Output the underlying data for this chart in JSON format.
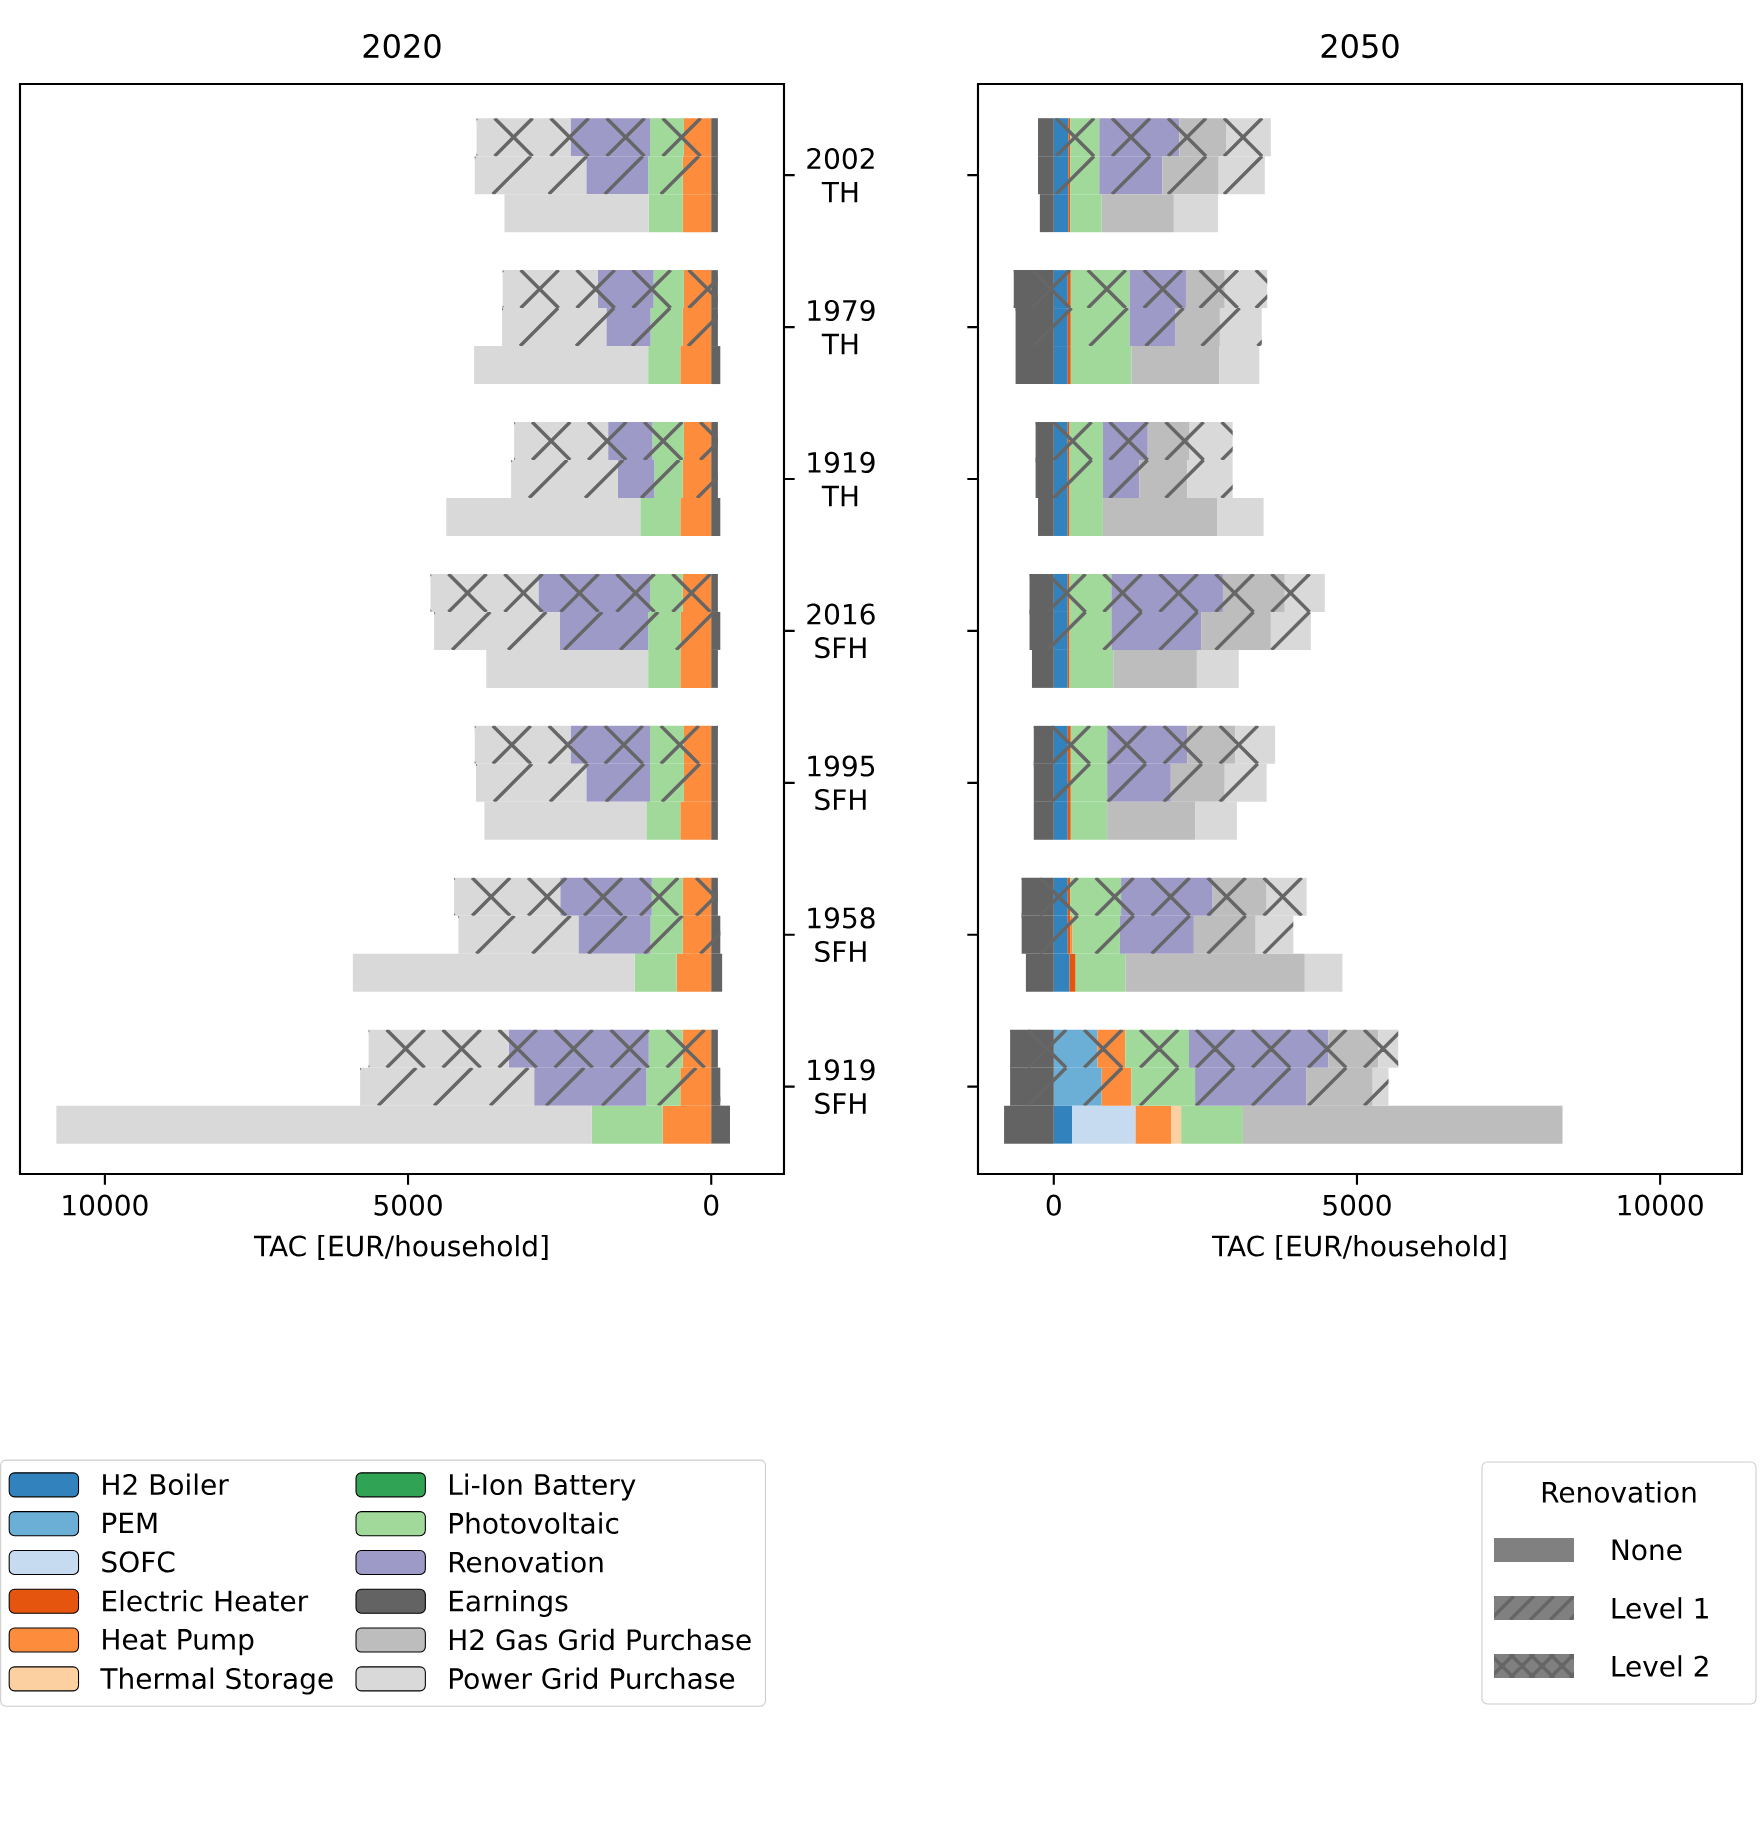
{
  "chart_data": [
    {
      "type": "bar",
      "orientation": "horizontal",
      "stacked": true,
      "title": "2020",
      "xlabel": "TAC [EUR/household]",
      "xlim": [
        11400,
        -1200
      ],
      "xticks": [
        10000,
        5000,
        0
      ],
      "legend": "bottom",
      "categories": [
        null,
        "2002 TH",
        null,
        null,
        "1979 TH",
        null,
        null,
        "1919 TH",
        null,
        null,
        "2016 SFH",
        null,
        null,
        "1995 SFH",
        null,
        null,
        "1958 SFH",
        null,
        null,
        "1919 SFH",
        null
      ],
      "series": [
        {
          "name": "H2 Boiler",
          "color": "#3182bd",
          "values": [
            null,
            null,
            null,
            null,
            null,
            null,
            null,
            null,
            null,
            null,
            null,
            null,
            null,
            null,
            null,
            null,
            null,
            null,
            null,
            null,
            null
          ]
        },
        {
          "name": "PEM",
          "color": "#6baed6",
          "values": [
            null,
            null,
            null,
            null,
            null,
            null,
            null,
            null,
            null,
            null,
            null,
            null,
            null,
            null,
            null,
            null,
            null,
            null,
            null,
            null,
            null
          ]
        },
        {
          "name": "SOFC",
          "color": "#c6dbef",
          "values": [
            null,
            null,
            null,
            null,
            null,
            null,
            null,
            null,
            null,
            null,
            null,
            null,
            null,
            null,
            null,
            null,
            null,
            null,
            null,
            null,
            null
          ]
        },
        {
          "name": "Electric Heater",
          "color": "#e6550d",
          "values": [
            null,
            null,
            null,
            null,
            null,
            null,
            null,
            null,
            null,
            null,
            null,
            null,
            null,
            null,
            null,
            null,
            null,
            null,
            null,
            null,
            null
          ]
        },
        {
          "name": "Heat Pump",
          "color": "#fd8d3c",
          "values": [
            450,
            470,
            470,
            450,
            470,
            510,
            450,
            470,
            510,
            470,
            500,
            510,
            450,
            450,
            510,
            470,
            470,
            570,
            470,
            510,
            800
          ]
        },
        {
          "name": "Thermal Storage",
          "color": "#fdd0a2",
          "values": [
            null,
            null,
            null,
            null,
            null,
            null,
            null,
            null,
            null,
            null,
            null,
            null,
            null,
            null,
            null,
            null,
            null,
            null,
            null,
            null,
            null
          ]
        },
        {
          "name": "Li-Ion Battery",
          "color": "#31a354",
          "values": [
            null,
            null,
            null,
            null,
            null,
            null,
            null,
            null,
            null,
            null,
            null,
            null,
            null,
            null,
            null,
            null,
            null,
            null,
            null,
            null,
            null
          ]
        },
        {
          "name": "Photovoltaic",
          "color": "#a1d99b",
          "values": [
            560,
            570,
            560,
            500,
            530,
            530,
            520,
            470,
            660,
            540,
            540,
            530,
            560,
            560,
            560,
            510,
            530,
            690,
            560,
            560,
            1170
          ]
        },
        {
          "name": "Renovation",
          "color": "#9e9ac8",
          "values": [
            1310,
            1020,
            null,
            920,
            730,
            null,
            730,
            600,
            null,
            1840,
            1460,
            null,
            1310,
            1050,
            null,
            1510,
            1190,
            null,
            2310,
            1850,
            null
          ]
        },
        {
          "name": "Earnings",
          "color": "#636363",
          "values": [
            -110,
            -110,
            -110,
            -110,
            -110,
            -150,
            -110,
            -110,
            -150,
            -110,
            -150,
            -110,
            -110,
            -110,
            -110,
            -110,
            -150,
            -180,
            -110,
            -150,
            -310
          ]
        },
        {
          "name": "H2 Gas Grid Purchase",
          "color": "#bdbdbd",
          "values": [
            null,
            null,
            null,
            null,
            null,
            null,
            null,
            null,
            null,
            null,
            null,
            null,
            null,
            null,
            null,
            null,
            null,
            null,
            null,
            null,
            null
          ]
        },
        {
          "name": "Power Grid Purchase",
          "color": "#d9d9d9",
          "values": [
            1550,
            1840,
            2380,
            1570,
            1720,
            2870,
            1550,
            1760,
            3200,
            1780,
            2070,
            2670,
            1580,
            1820,
            2670,
            1750,
            1980,
            4650,
            2310,
            2870,
            8830
          ]
        }
      ]
    },
    {
      "type": "bar",
      "orientation": "horizontal",
      "stacked": true,
      "title": "2050",
      "xlabel": "TAC [EUR/household]",
      "xlim": [
        -1250,
        11350
      ],
      "xticks": [
        0,
        5000,
        10000
      ],
      "categories": [
        null,
        null,
        null,
        null,
        null,
        null,
        null,
        null,
        null,
        null,
        null,
        null,
        null,
        null,
        null,
        null,
        null,
        null,
        null,
        null,
        null
      ],
      "series": [
        {
          "color": "#3182bd",
          "values": [
            240,
            240,
            240,
            230,
            230,
            230,
            230,
            230,
            230,
            230,
            230,
            230,
            230,
            230,
            230,
            230,
            230,
            260,
            null,
            null,
            300
          ]
        },
        {
          "color": "#6baed6",
          "values": [
            null,
            null,
            null,
            null,
            null,
            null,
            null,
            null,
            null,
            null,
            null,
            null,
            null,
            null,
            null,
            null,
            null,
            null,
            720,
            790,
            null
          ]
        },
        {
          "color": "#c6dbef",
          "values": [
            null,
            null,
            null,
            null,
            null,
            null,
            null,
            null,
            null,
            null,
            null,
            null,
            null,
            null,
            null,
            null,
            null,
            null,
            null,
            null,
            1050
          ]
        },
        {
          "color": "#e6550d",
          "values": [
            30,
            30,
            30,
            50,
            50,
            50,
            30,
            30,
            30,
            30,
            30,
            30,
            50,
            50,
            50,
            40,
            40,
            100,
            null,
            null,
            null
          ]
        },
        {
          "color": "#fd8d3c",
          "values": [
            null,
            null,
            null,
            null,
            null,
            null,
            null,
            null,
            null,
            null,
            null,
            null,
            null,
            null,
            null,
            null,
            40,
            null,
            460,
            490,
            590
          ]
        },
        {
          "color": "#fdd0a2",
          "values": [
            null,
            null,
            null,
            null,
            null,
            null,
            null,
            null,
            null,
            null,
            null,
            null,
            null,
            null,
            null,
            null,
            null,
            null,
            null,
            null,
            160
          ]
        },
        {
          "color": "#a1d99b",
          "values": [
            480,
            480,
            520,
            970,
            970,
            1000,
            550,
            550,
            550,
            690,
            690,
            720,
            600,
            600,
            600,
            840,
            780,
            820,
            1050,
            1050,
            1020
          ]
        },
        {
          "color": "#9e9ac8",
          "values": [
            1320,
            1040,
            null,
            930,
            760,
            null,
            740,
            600,
            null,
            1840,
            1480,
            null,
            1320,
            1050,
            null,
            1510,
            1220,
            null,
            2300,
            1840,
            null
          ]
        },
        {
          "color": "#636363",
          "values": [
            -260,
            -260,
            -230,
            -660,
            -630,
            -630,
            -300,
            -300,
            -260,
            -400,
            -400,
            -360,
            -330,
            -330,
            -330,
            -530,
            -530,
            -460,
            -720,
            -720,
            -820
          ]
        },
        {
          "color": "#bdbdbd",
          "values": [
            770,
            930,
            1190,
            640,
            730,
            1450,
            690,
            790,
            1890,
            1020,
            1150,
            1380,
            790,
            890,
            1450,
            890,
            1020,
            2960,
            820,
            1090,
            5270
          ]
        },
        {
          "color": "#d9d9d9",
          "values": [
            740,
            760,
            730,
            700,
            690,
            660,
            710,
            750,
            760,
            660,
            660,
            690,
            660,
            690,
            690,
            660,
            620,
            620,
            330,
            260,
            null
          ]
        }
      ]
    },
    {
      "type": "other",
      "legend_title": "Renovation",
      "categories": [
        "None",
        "Level 1",
        "Level 2"
      ],
      "color": "#808080"
    }
  ]
}
